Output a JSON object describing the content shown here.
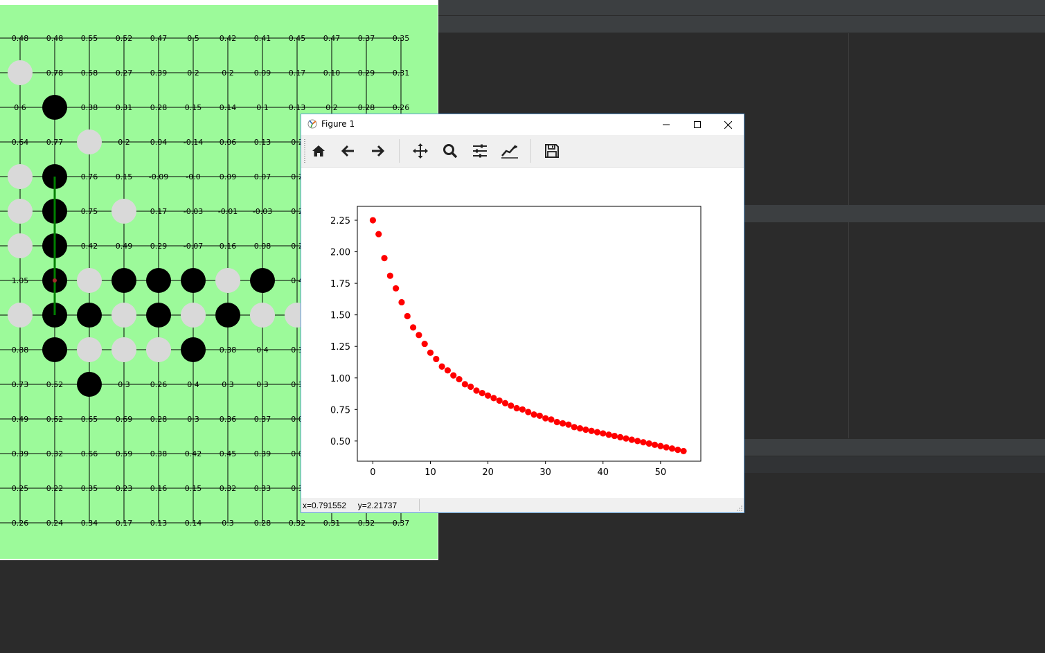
{
  "figure_window": {
    "title": "Figure 1",
    "toolbar": [
      {
        "name": "home-icon",
        "label": "Home"
      },
      {
        "name": "back-icon",
        "label": "Back"
      },
      {
        "name": "forward-icon",
        "label": "Forward"
      },
      {
        "name": "pan-icon",
        "label": "Pan"
      },
      {
        "name": "zoom-icon",
        "label": "Zoom"
      },
      {
        "name": "subplots-icon",
        "label": "Subplots"
      },
      {
        "name": "customize-icon",
        "label": "Customize"
      },
      {
        "name": "save-icon",
        "label": "Save"
      }
    ],
    "status_coords": "x=0.791552     y=2.21737"
  },
  "chart_data": {
    "type": "scatter",
    "title": "",
    "xlabel": "",
    "ylabel": "",
    "xlim": [
      -2.7,
      57
    ],
    "ylim": [
      0.34,
      2.36
    ],
    "xticks": [
      0,
      10,
      20,
      30,
      40,
      50
    ],
    "yticks": [
      0.5,
      0.75,
      1.0,
      1.25,
      1.5,
      1.75,
      2.0,
      2.25
    ],
    "xtick_labels": [
      "0",
      "10",
      "20",
      "30",
      "40",
      "50"
    ],
    "ytick_labels": [
      "0.50",
      "0.75",
      "1.00",
      "1.25",
      "1.50",
      "1.75",
      "2.00",
      "2.25"
    ],
    "marker_color": "#ff0000",
    "series": [
      {
        "x": [
          0,
          1,
          2,
          3,
          4,
          5,
          6,
          7,
          8,
          9,
          10,
          11,
          12,
          13,
          14,
          15,
          16,
          17,
          18,
          19,
          20,
          21,
          22,
          23,
          24,
          25,
          26,
          27,
          28,
          29,
          30,
          31,
          32,
          33,
          34,
          35,
          36,
          37,
          38,
          39,
          40,
          41,
          42,
          43,
          44,
          45,
          46,
          47,
          48,
          49,
          50,
          51,
          52,
          53,
          54
        ],
        "y": [
          2.25,
          2.14,
          1.95,
          1.81,
          1.71,
          1.6,
          1.49,
          1.4,
          1.34,
          1.27,
          1.2,
          1.15,
          1.09,
          1.06,
          1.02,
          0.99,
          0.95,
          0.93,
          0.9,
          0.88,
          0.86,
          0.84,
          0.82,
          0.8,
          0.78,
          0.76,
          0.75,
          0.73,
          0.71,
          0.7,
          0.68,
          0.67,
          0.65,
          0.64,
          0.63,
          0.61,
          0.6,
          0.59,
          0.58,
          0.57,
          0.56,
          0.55,
          0.54,
          0.53,
          0.52,
          0.51,
          0.5,
          0.49,
          0.48,
          0.47,
          0.46,
          0.45,
          0.44,
          0.43,
          0.42
        ]
      }
    ]
  },
  "board": {
    "colors": {
      "background": "#9cfa9a",
      "black": "#000000",
      "white": "#d9d9d9",
      "grid": "#000000",
      "win_line": "#008000",
      "last_move": "#a52a2a"
    },
    "row_labels": [
      [
        "0.48",
        "0.48",
        "0.55",
        "0.52",
        "0.47",
        "0.5",
        "0.42",
        "0.41",
        "0.45",
        "0.47",
        "0.37",
        "0.35"
      ],
      [
        "",
        "0.78",
        "0.58",
        "0.27",
        "0.39",
        "0.2",
        "0.2",
        "0.09",
        "0.17",
        "0.10",
        "0.29",
        "0.31"
      ],
      [
        "0.6",
        "",
        "0.38",
        "0.31",
        "0.28",
        "0.15",
        "0.14",
        "0.1",
        "0.13",
        "0.2",
        "0.28",
        "0.26"
      ],
      [
        "0.64",
        "0.77",
        "",
        "0.2",
        "0.04",
        "-0.14",
        "0.06",
        "0.13",
        "0.2",
        "",
        "",
        ""
      ],
      [
        "",
        "",
        "0.76",
        "0.15",
        "-0.09",
        "-0.0",
        "0.09",
        "0.07",
        "0.2",
        "",
        "",
        ""
      ],
      [
        "",
        "",
        "0.75",
        "",
        "0.17",
        "-0.03",
        "-0.01",
        "-0.03",
        "0.2",
        "",
        "",
        ""
      ],
      [
        "",
        "",
        "0.42",
        "0.49",
        "0.29",
        "-0.07",
        "0.16",
        "0.08",
        "0.2",
        "",
        "",
        ""
      ],
      [
        "1.05",
        "",
        "",
        "",
        "",
        "",
        "",
        "",
        "0.4",
        "",
        "",
        ""
      ],
      [
        "",
        "",
        "",
        "",
        "",
        "",
        "",
        "",
        "",
        "",
        "",
        ""
      ],
      [
        "0.88",
        "",
        "",
        "",
        "",
        "",
        "0.38",
        "0.4",
        "0.3",
        "",
        "",
        ""
      ],
      [
        "0.73",
        "0.52",
        "",
        "0.3",
        "0.26",
        "0.4",
        "0.3",
        "0.3",
        "0.1",
        "",
        "",
        ""
      ],
      [
        "0.49",
        "0.62",
        "0.65",
        "0.69",
        "0.28",
        "0.3",
        "0.36",
        "0.37",
        "0.0",
        "",
        "",
        ""
      ],
      [
        "0.39",
        "0.32",
        "0.66",
        "0.59",
        "0.38",
        "0.42",
        "0.45",
        "0.39",
        "0.0",
        "",
        "",
        ""
      ],
      [
        "0.25",
        "0.22",
        "0.35",
        "0.23",
        "0.16",
        "0.15",
        "0.32",
        "0.33",
        "0.3",
        "",
        "",
        ""
      ],
      [
        "0.26",
        "0.24",
        "0.34",
        "0.17",
        "0.13",
        "0.14",
        "0.3",
        "0.28",
        "0.32",
        "0.31",
        "0.32",
        "0.37"
      ]
    ],
    "stones": [
      {
        "c": 0,
        "r": 1,
        "color": "white"
      },
      {
        "c": 1,
        "r": 2,
        "color": "black"
      },
      {
        "c": 2,
        "r": 3,
        "color": "white"
      },
      {
        "c": 0,
        "r": 4,
        "color": "white"
      },
      {
        "c": 1,
        "r": 4,
        "color": "black"
      },
      {
        "c": 0,
        "r": 5,
        "color": "white"
      },
      {
        "c": 1,
        "r": 5,
        "color": "black"
      },
      {
        "c": 3,
        "r": 5,
        "color": "white"
      },
      {
        "c": 0,
        "r": 6,
        "color": "white"
      },
      {
        "c": 1,
        "r": 6,
        "color": "black"
      },
      {
        "c": 1,
        "r": 7,
        "color": "black"
      },
      {
        "c": 2,
        "r": 7,
        "color": "white"
      },
      {
        "c": 3,
        "r": 7,
        "color": "black"
      },
      {
        "c": 4,
        "r": 7,
        "color": "black"
      },
      {
        "c": 5,
        "r": 7,
        "color": "black"
      },
      {
        "c": 6,
        "r": 7,
        "color": "white"
      },
      {
        "c": 7,
        "r": 7,
        "color": "black"
      },
      {
        "c": 0,
        "r": 8,
        "color": "white"
      },
      {
        "c": 1,
        "r": 8,
        "color": "black"
      },
      {
        "c": 2,
        "r": 8,
        "color": "black"
      },
      {
        "c": 3,
        "r": 8,
        "color": "white"
      },
      {
        "c": 4,
        "r": 8,
        "color": "black"
      },
      {
        "c": 5,
        "r": 8,
        "color": "white"
      },
      {
        "c": 6,
        "r": 8,
        "color": "black"
      },
      {
        "c": 7,
        "r": 8,
        "color": "white"
      },
      {
        "c": 8,
        "r": 8,
        "color": "white"
      },
      {
        "c": 1,
        "r": 9,
        "color": "black"
      },
      {
        "c": 2,
        "r": 9,
        "color": "white"
      },
      {
        "c": 3,
        "r": 9,
        "color": "white"
      },
      {
        "c": 4,
        "r": 9,
        "color": "white"
      },
      {
        "c": 5,
        "r": 9,
        "color": "black"
      },
      {
        "c": 2,
        "r": 10,
        "color": "black"
      }
    ],
    "win_line": {
      "col": 1,
      "from_row": 4,
      "to_row": 8
    },
    "last_move": {
      "c": 1,
      "r": 7
    }
  }
}
